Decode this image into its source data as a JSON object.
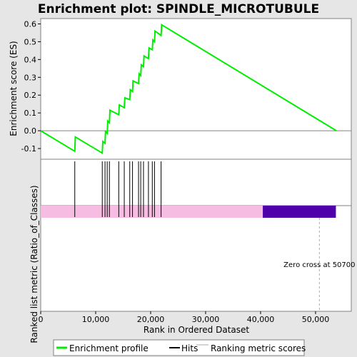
{
  "chart_data": {
    "type": "line",
    "title": "Enrichment plot: SPINDLE_MICROTUBULE",
    "ylabel_top": "Enrichment score (ES)",
    "ylabel_bottom": "Ranked list metric (Ratio_of_Classes)",
    "xlabel": "Rank in Ordered Dataset",
    "xlim": [
      0,
      56500
    ],
    "ylim": [
      -0.16,
      0.63
    ],
    "x_ticks": [
      {
        "v": 0,
        "label": "0"
      },
      {
        "v": 10000,
        "label": "10,000"
      },
      {
        "v": 20000,
        "label": "20,000"
      },
      {
        "v": 30000,
        "label": "30,000"
      },
      {
        "v": 40000,
        "label": "40,000"
      },
      {
        "v": 50000,
        "label": "50,000"
      }
    ],
    "y_ticks": [
      {
        "v": -0.1,
        "label": "-0.1"
      },
      {
        "v": 0.0,
        "label": "0.0"
      },
      {
        "v": 0.1,
        "label": "0.1"
      },
      {
        "v": 0.2,
        "label": "0.2"
      },
      {
        "v": 0.3,
        "label": "0.3"
      },
      {
        "v": 0.4,
        "label": "0.4"
      },
      {
        "v": 0.5,
        "label": "0.5"
      },
      {
        "v": 0.6,
        "label": "0.6"
      }
    ],
    "series": [
      {
        "name": "Enrichment profile",
        "color": "#00ee00",
        "x": [
          0,
          6200,
          6300,
          11200,
          11300,
          11700,
          11800,
          12100,
          12200,
          12500,
          12600,
          14200,
          14300,
          15200,
          15300,
          16200,
          16300,
          16700,
          16800,
          17800,
          17900,
          18200,
          18300,
          18700,
          18800,
          19600,
          19700,
          20300,
          20400,
          20700,
          20800,
          21900,
          22000,
          53800
        ],
        "y": [
          0.0,
          -0.115,
          -0.035,
          -0.125,
          -0.06,
          -0.07,
          -0.005,
          -0.015,
          0.055,
          0.045,
          0.115,
          0.09,
          0.145,
          0.13,
          0.185,
          0.175,
          0.23,
          0.22,
          0.28,
          0.265,
          0.32,
          0.31,
          0.37,
          0.36,
          0.42,
          0.405,
          0.465,
          0.455,
          0.51,
          0.5,
          0.56,
          0.535,
          0.595,
          0.0
        ]
      }
    ],
    "hits": [
      6200,
      11200,
      11700,
      12100,
      12500,
      14200,
      15200,
      16200,
      16700,
      17800,
      18200,
      18700,
      19600,
      20300,
      20700,
      21900
    ],
    "metric_bar": [
      {
        "from": 0,
        "to": 40400,
        "color": "#f7bce1"
      },
      {
        "from": 40400,
        "to": 53700,
        "color": "#5000aa"
      }
    ],
    "zero_cross_x": 50700,
    "zero_cross_label": "Zero cross at 50700",
    "legend": {
      "placement": "bottom",
      "items": [
        {
          "label": "Enrichment profile",
          "color": "#00ee00"
        },
        {
          "label": "Hits",
          "color": "#000000"
        },
        {
          "label": "Ranking metric scores",
          "color": "#aaaaaa"
        }
      ]
    }
  }
}
